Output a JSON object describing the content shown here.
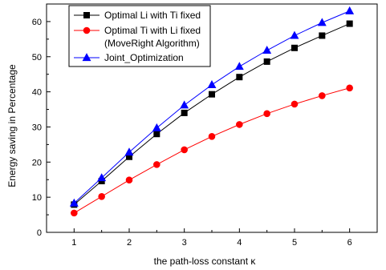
{
  "chart_data": {
    "type": "line",
    "title": "",
    "xlabel": "the path-loss constant κ",
    "ylabel": "Energy saving in Percentage",
    "xlim": [
      0.5,
      6.5
    ],
    "ylim": [
      0,
      65
    ],
    "xticks": [
      1,
      2,
      3,
      4,
      5,
      6
    ],
    "yticks": [
      0,
      10,
      20,
      30,
      40,
      50,
      60
    ],
    "grid": false,
    "legend_position": "top-left",
    "x": [
      1,
      1.5,
      2,
      2.5,
      3,
      3.5,
      4,
      4.5,
      5,
      5.5,
      6
    ],
    "series": [
      {
        "name": "Optimal Li with Ti fixed",
        "color": "#000000",
        "marker": "square",
        "values": [
          7.9,
          14.6,
          21.5,
          28.0,
          34.0,
          39.3,
          44.2,
          48.6,
          52.5,
          56.0,
          59.4
        ]
      },
      {
        "name": "Optimal Ti with Li fixed",
        "name_line2": "(MoveRight Algorithm)",
        "color": "#ff0000",
        "marker": "circle",
        "values": [
          5.5,
          10.2,
          14.9,
          19.3,
          23.5,
          27.3,
          30.7,
          33.8,
          36.5,
          38.9,
          41.1
        ]
      },
      {
        "name": "Joint_Optimization",
        "color": "#0000ff",
        "marker": "triangle",
        "values": [
          8.3,
          15.5,
          22.8,
          29.7,
          36.2,
          42.0,
          47.2,
          51.8,
          56.0,
          59.7,
          63.0
        ]
      }
    ]
  }
}
